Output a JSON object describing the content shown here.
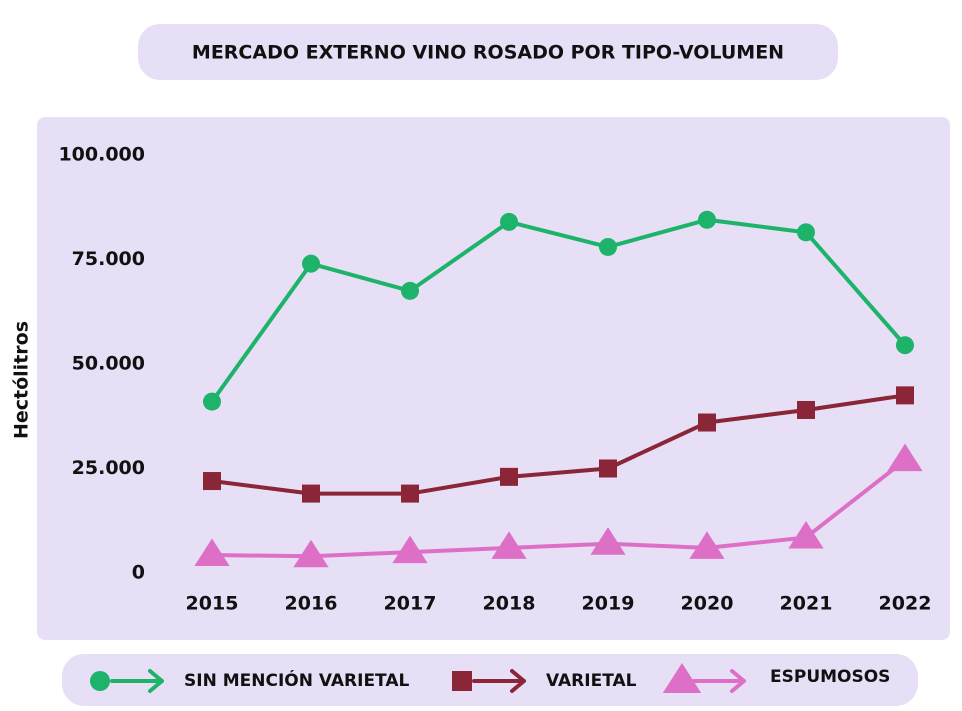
{
  "chart_data": {
    "type": "line",
    "title": "MERCADO EXTERNO VINO ROSADO POR TIPO-VOLUMEN",
    "y_label": "Hectólitros",
    "categories": [
      "2015",
      "2016",
      "2017",
      "2018",
      "2019",
      "2020",
      "2021",
      "2022"
    ],
    "series": [
      {
        "name": "SIN MENCIÓN VARIETAL",
        "color": "#1db36b",
        "marker": "circle",
        "values": [
          41000,
          74000,
          67500,
          84000,
          78000,
          84500,
          81500,
          54500
        ]
      },
      {
        "name": "VARIETAL",
        "color": "#8b2538",
        "marker": "square",
        "values": [
          22000,
          19000,
          19000,
          23000,
          25000,
          36000,
          39000,
          42500
        ]
      },
      {
        "name": "ESPUMOSOS",
        "color": "#de6fc6",
        "marker": "triangle",
        "values": [
          4300,
          4000,
          5000,
          6000,
          7000,
          6000,
          8500,
          27000
        ]
      }
    ],
    "ylim": [
      0,
      100000
    ],
    "yticks": [
      0,
      {
        "value": 25000,
        "label": "25.000"
      },
      {
        "value": 50000,
        "label": "50.000"
      },
      {
        "value": 75000,
        "label": "75.000"
      },
      {
        "value": 100000,
        "label": "100.000"
      }
    ],
    "grid": false
  }
}
